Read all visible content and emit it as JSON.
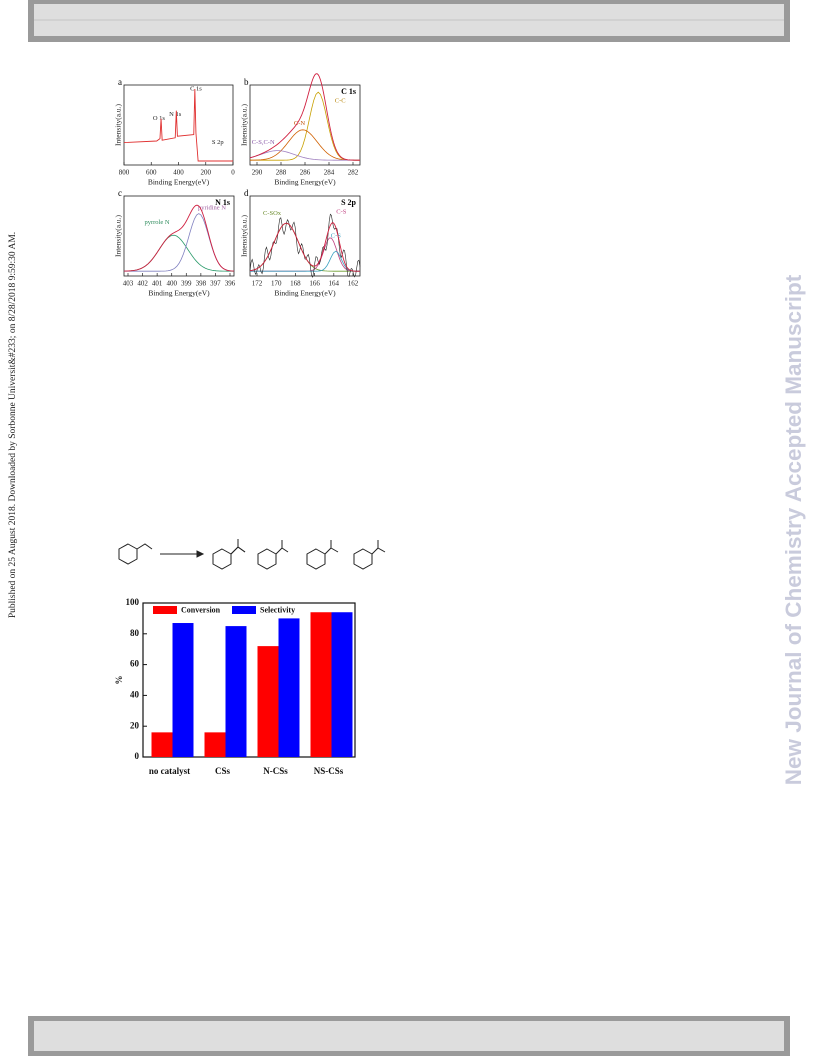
{
  "sidebar": {
    "download_note": "Published on 25 August 2018. Downloaded by Sorbonne Universit&#233; on 8/28/2018 9:59:30 AM."
  },
  "watermark": "New Journal of Chemistry Accepted Manuscript",
  "figure_xps": {
    "panels": [
      {
        "letter": "a",
        "xlabel": "Binding Energy(eV)",
        "ylabel": "Intensity(a.u.)",
        "xticks": [
          800,
          600,
          400,
          200,
          0
        ],
        "peaks": [
          "O 1s",
          "N 1s",
          "C 1s",
          "S 2p"
        ]
      },
      {
        "letter": "b",
        "title": "C 1s",
        "xlabel": "Binding Energy(eV)",
        "ylabel": "Intensity(a.u.)",
        "xticks": [
          290,
          288,
          286,
          284,
          282
        ],
        "peaks": [
          "C-C",
          "C-N",
          "C-S,C-N"
        ]
      },
      {
        "letter": "c",
        "title": "N 1s",
        "xlabel": "Binding Energy(eV)",
        "ylabel": "Intensity(a.u.)",
        "xticks": [
          403,
          402,
          401,
          400,
          399,
          398,
          397,
          396
        ],
        "peaks": [
          "pyrrole N",
          "pyridine N"
        ]
      },
      {
        "letter": "d",
        "title": "S 2p",
        "xlabel": "Binding Energy(eV)",
        "ylabel": "Intensity(a.u.)",
        "xticks": [
          172,
          170,
          168,
          166,
          164,
          162
        ],
        "peaks": [
          "C-SOx",
          "C-S",
          "C-S"
        ]
      }
    ]
  },
  "chart_data": {
    "type": "bar",
    "ylabel": "%",
    "categories": [
      "no catalyst",
      "CSs",
      "N-CSs",
      "NS-CSs"
    ],
    "series": [
      {
        "name": "Conversion",
        "color": "#ff0000",
        "values": [
          16,
          16,
          72,
          94
        ]
      },
      {
        "name": "Selectivity",
        "color": "#0000ff",
        "values": [
          87,
          85,
          90,
          94
        ]
      }
    ],
    "ylim": [
      0,
      100
    ],
    "yticks": [
      0,
      20,
      40,
      60,
      80,
      100
    ],
    "legend": "upper left"
  }
}
